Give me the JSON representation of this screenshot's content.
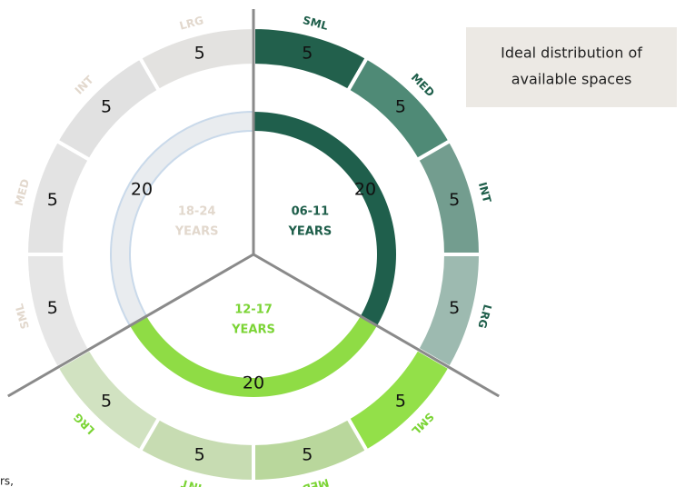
{
  "chart_data": {
    "type": "nested_donut",
    "legend_lines": [
      "Ideal distribution of",
      "available spaces"
    ],
    "footnote": "rs,",
    "groups": [
      {
        "label_lines": [
          "06-11",
          "YEARS"
        ],
        "value": 20,
        "color": "#1f5f4c",
        "text_color": "#1e5e4a",
        "segments": [
          {
            "name": "SML",
            "value": 5,
            "color": "#22604c"
          },
          {
            "name": "MED",
            "value": 5,
            "color": "#4f8a76"
          },
          {
            "name": "INT",
            "value": 5,
            "color": "#739d8f"
          },
          {
            "name": "LRG",
            "value": 5,
            "color": "#9dbab0"
          }
        ]
      },
      {
        "label_lines": [
          "12-17",
          "YEARS"
        ],
        "value": 20,
        "color": "#8fdc45",
        "text_color": "#7bd435",
        "segments": [
          {
            "name": "SML",
            "value": 5,
            "color": "#93e049"
          },
          {
            "name": "MED",
            "value": 5,
            "color": "#b9d79c"
          },
          {
            "name": "INT",
            "value": 5,
            "color": "#c7dcb2"
          },
          {
            "name": "LRG",
            "value": 5,
            "color": "#d1e2c1"
          }
        ]
      },
      {
        "label_lines": [
          "18-24",
          "YEARS"
        ],
        "value": 20,
        "color": "#e9ecef",
        "text_color": "#e2d8cd",
        "segments": [
          {
            "name": "SML",
            "value": 5,
            "color": "#e6e6e6"
          },
          {
            "name": "MED",
            "value": 5,
            "color": "#e3e3e3"
          },
          {
            "name": "INT",
            "value": 5,
            "color": "#e1e1e1"
          },
          {
            "name": "LRG",
            "value": 5,
            "color": "#e3e2e0"
          }
        ]
      }
    ]
  }
}
